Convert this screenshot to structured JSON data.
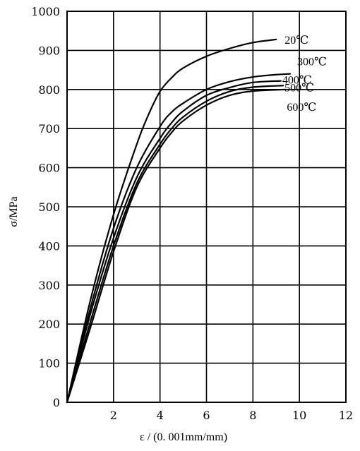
{
  "chart_data": {
    "type": "line",
    "title": "",
    "xlabel": "ε / (0. 001mm/mm)",
    "ylabel": "σ/MPa",
    "xlim": [
      0,
      12
    ],
    "ylim": [
      0,
      1000
    ],
    "grid": true,
    "legend": "none",
    "x_ticks": [
      {
        "value": 2,
        "label": "2"
      },
      {
        "value": 4,
        "label": "4"
      },
      {
        "value": 6,
        "label": "6"
      },
      {
        "value": 8,
        "label": "8"
      },
      {
        "value": 10,
        "label": "10"
      },
      {
        "value": 12,
        "label": "12"
      }
    ],
    "y_ticks": [
      {
        "value": 0,
        "label": "0"
      },
      {
        "value": 100,
        "label": "100"
      },
      {
        "value": 200,
        "label": "200"
      },
      {
        "value": 300,
        "label": "300"
      },
      {
        "value": 400,
        "label": "400"
      },
      {
        "value": 500,
        "label": "500"
      },
      {
        "value": 600,
        "label": "600"
      },
      {
        "value": 700,
        "label": "700"
      },
      {
        "value": 800,
        "label": "800"
      },
      {
        "value": 900,
        "label": "900"
      },
      {
        "value": 1000,
        "label": "1000"
      }
    ],
    "series": [
      {
        "name": "20℃",
        "x": [
          0,
          1,
          2,
          3,
          3.5,
          4,
          4.5,
          5,
          6,
          7,
          8,
          9
        ],
        "y": [
          0,
          260,
          480,
          660,
          735,
          795,
          830,
          855,
          885,
          905,
          920,
          928
        ]
      },
      {
        "name": "300℃",
        "x": [
          0,
          1,
          2,
          3,
          4,
          4.5,
          5,
          6,
          7,
          8,
          9,
          9.6
        ],
        "y": [
          0,
          240,
          445,
          600,
          705,
          742,
          765,
          800,
          820,
          832,
          838,
          840
        ]
      },
      {
        "name": "400℃",
        "x": [
          0,
          1,
          2,
          3,
          4,
          4.5,
          5,
          6,
          7,
          8,
          9.2
        ],
        "y": [
          0,
          225,
          420,
          575,
          675,
          715,
          745,
          785,
          805,
          818,
          822
        ]
      },
      {
        "name": "500℃",
        "x": [
          0,
          1,
          2,
          3,
          4,
          4.5,
          5,
          6,
          7,
          8,
          9.3
        ],
        "y": [
          0,
          205,
          400,
          560,
          660,
          700,
          730,
          770,
          795,
          806,
          810
        ]
      },
      {
        "name": "600℃",
        "x": [
          0,
          1,
          2,
          3,
          4,
          4.5,
          5,
          6,
          7,
          8,
          9.4
        ],
        "y": [
          0,
          190,
          385,
          550,
          650,
          690,
          720,
          760,
          785,
          796,
          800
        ]
      }
    ]
  }
}
